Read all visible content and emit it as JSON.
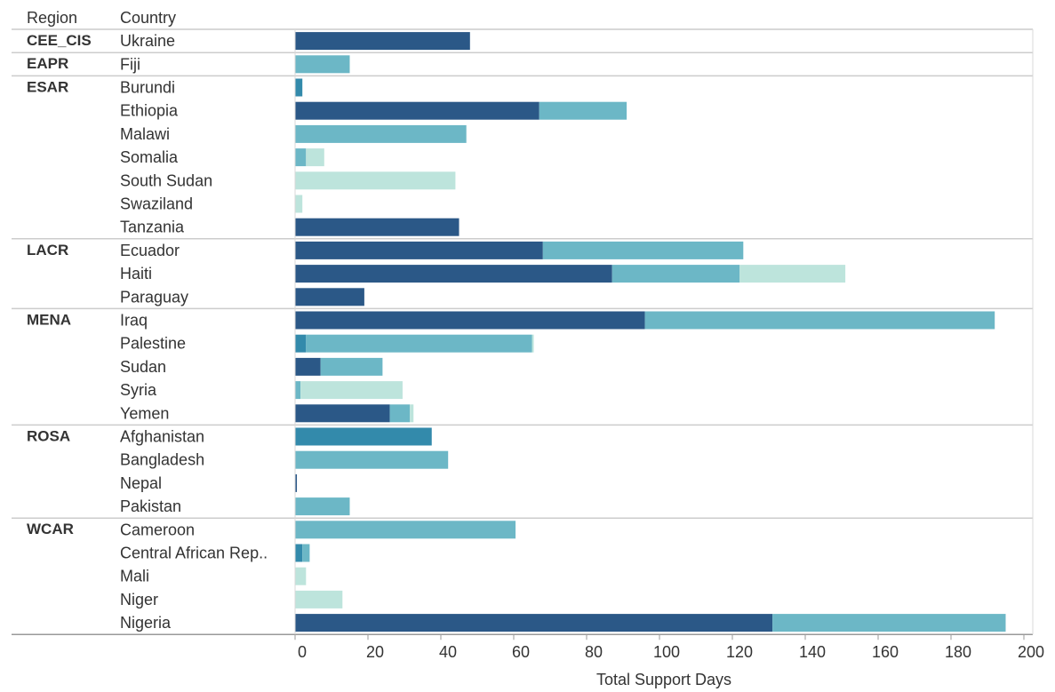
{
  "chart_data": {
    "type": "bar",
    "orientation": "horizontal",
    "stacked": true,
    "headers": {
      "region": "Region",
      "country": "Country"
    },
    "xlabel": "Total Support Days",
    "xlim": [
      0,
      200
    ],
    "ticks": [
      0,
      20,
      40,
      60,
      80,
      100,
      120,
      140,
      160,
      180,
      200
    ],
    "grid": false,
    "legend": "none",
    "colors": [
      "#2b5887",
      "#338aab",
      "#6cb7c6",
      "#bde4dc"
    ],
    "groups": [
      {
        "region": "CEE_CIS",
        "rows": [
          {
            "country": "Ukraine",
            "segments": [
              48,
              0,
              0,
              0
            ]
          }
        ]
      },
      {
        "region": "EAPR",
        "rows": [
          {
            "country": "Fiji",
            "segments": [
              0,
              0,
              15,
              0
            ]
          }
        ]
      },
      {
        "region": "ESAR",
        "rows": [
          {
            "country": "Burundi",
            "segments": [
              0,
              2,
              0,
              0
            ]
          },
          {
            "country": "Ethiopia",
            "segments": [
              67,
              0,
              24,
              0
            ]
          },
          {
            "country": "Malawi",
            "segments": [
              0,
              0,
              47,
              0
            ]
          },
          {
            "country": "Somalia",
            "segments": [
              0,
              0,
              3,
              5
            ]
          },
          {
            "country": "South Sudan",
            "segments": [
              0,
              0,
              0,
              44
            ]
          },
          {
            "country": "Swaziland",
            "segments": [
              0,
              0,
              0,
              2
            ]
          },
          {
            "country": "Tanzania",
            "segments": [
              45,
              0,
              0,
              0
            ]
          }
        ]
      },
      {
        "region": "LACR",
        "rows": [
          {
            "country": "Ecuador",
            "segments": [
              68,
              0,
              55,
              0
            ]
          },
          {
            "country": "Haiti",
            "segments": [
              87,
              0,
              35,
              29
            ]
          },
          {
            "country": "Paraguay",
            "segments": [
              19,
              0,
              0,
              0
            ]
          }
        ]
      },
      {
        "region": "MENA",
        "rows": [
          {
            "country": "Iraq",
            "segments": [
              96,
              0,
              96,
              0
            ]
          },
          {
            "country": "Palestine",
            "segments": [
              0,
              3,
              62,
              0.5
            ]
          },
          {
            "country": "Sudan",
            "segments": [
              7,
              0,
              17,
              0
            ]
          },
          {
            "country": "Syria",
            "segments": [
              0,
              0,
              1.5,
              28
            ]
          },
          {
            "country": "Yemen",
            "segments": [
              26,
              0,
              5.5,
              1
            ]
          }
        ]
      },
      {
        "region": "ROSA",
        "rows": [
          {
            "country": "Afghanistan",
            "segments": [
              0,
              37.5,
              0,
              0
            ]
          },
          {
            "country": "Bangladesh",
            "segments": [
              0,
              0,
              42,
              0
            ]
          },
          {
            "country": "Nepal",
            "segments": [
              0.5,
              0,
              0,
              0
            ]
          },
          {
            "country": "Pakistan",
            "segments": [
              0,
              0,
              15,
              0
            ]
          }
        ]
      },
      {
        "region": "WCAR",
        "rows": [
          {
            "country": "Cameroon",
            "segments": [
              0,
              0,
              60.5,
              0
            ]
          },
          {
            "country": "Central African Rep..",
            "segments": [
              0,
              2,
              2,
              0
            ]
          },
          {
            "country": "Mali",
            "segments": [
              0,
              0,
              0,
              3
            ]
          },
          {
            "country": "Niger",
            "segments": [
              0,
              0,
              0,
              13
            ]
          },
          {
            "country": "Nigeria",
            "segments": [
              131,
              0,
              64,
              0
            ]
          }
        ]
      }
    ]
  }
}
